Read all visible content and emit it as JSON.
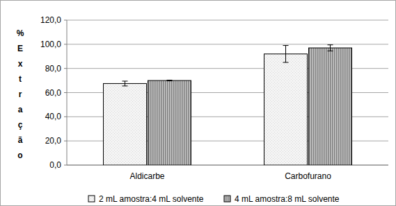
{
  "chart_data": {
    "type": "bar",
    "y_label": "% Extração",
    "categories": [
      "Aldicarbe",
      "Carbofurano"
    ],
    "series": [
      {
        "name": "2 mL amostra:4 mL solvente",
        "color": "#d9d9d9",
        "values": [
          67.5,
          92.0
        ],
        "errors": [
          2.0,
          7.0
        ]
      },
      {
        "name": "4 mL amostra:8 mL solvente",
        "color": "#7f7f7f",
        "values": [
          70.0,
          97.0
        ],
        "errors": [
          0.3,
          2.5
        ]
      }
    ],
    "ylim": [
      0,
      120
    ],
    "yticks": [
      {
        "value": 0,
        "label": "0,0"
      },
      {
        "value": 20,
        "label": "20,0"
      },
      {
        "value": 40,
        "label": "40,0"
      },
      {
        "value": 60,
        "label": "60,0"
      },
      {
        "value": 80,
        "label": "80,0"
      },
      {
        "value": 100,
        "label": "100,0"
      },
      {
        "value": 120,
        "label": "120,0"
      }
    ],
    "grid": true,
    "legend": "bottom"
  }
}
